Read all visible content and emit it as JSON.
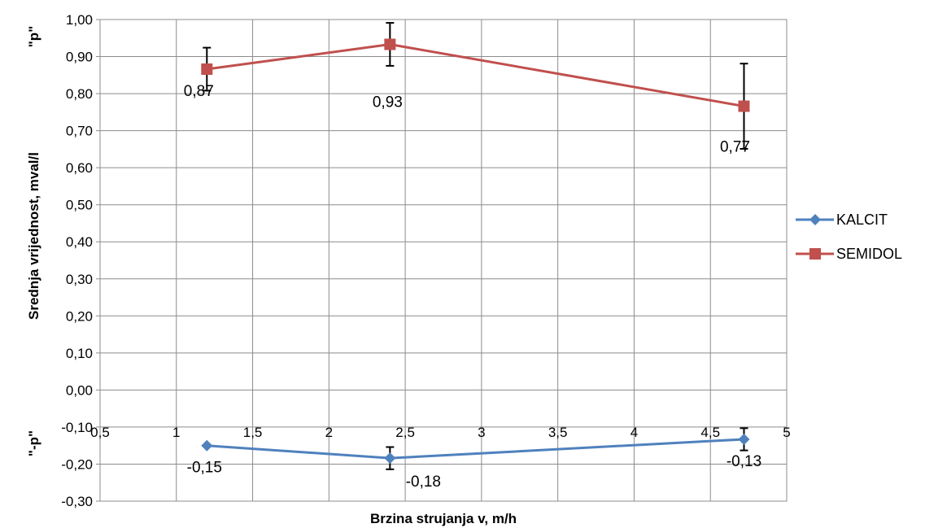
{
  "chart_data": {
    "type": "line",
    "xlabel": "Brzina strujanja v, m/h",
    "ylabel": "Srednja vrijednost, mval/l",
    "ylabel_top": "\"p\"",
    "ylabel_bottom": "\"-p\"",
    "xlim": [
      0.5,
      5
    ],
    "ylim": [
      -0.3,
      1.0
    ],
    "x_ticks": [
      "0,5",
      "1",
      "1,5",
      "2",
      "2,5",
      "3",
      "3,5",
      "4",
      "4,5",
      "5"
    ],
    "x_tick_values": [
      0.5,
      1,
      1.5,
      2,
      2.5,
      3,
      3.5,
      4,
      4.5,
      5
    ],
    "y_ticks": [
      "1,00",
      "0,90",
      "0,80",
      "0,70",
      "0,60",
      "0,50",
      "0,40",
      "0,30",
      "0,20",
      "0,10",
      "0,00",
      "-0,10",
      "-0,20",
      "-0,30"
    ],
    "y_tick_values": [
      1.0,
      0.9,
      0.8,
      0.7,
      0.6,
      0.5,
      0.4,
      0.3,
      0.2,
      0.1,
      0.0,
      -0.1,
      -0.2,
      -0.3
    ],
    "grid": true,
    "legend_position": "right",
    "series": [
      {
        "name": "KALCIT",
        "color": "#4f81bd",
        "marker": "diamond",
        "x": [
          1.2,
          2.4,
          4.72
        ],
        "y": [
          -0.15,
          -0.184,
          -0.133
        ],
        "errors": [
          0,
          0.03,
          0.03
        ],
        "labels": [
          "-0,15",
          "-0,18",
          "-0,13"
        ]
      },
      {
        "name": "SEMIDOL",
        "color": "#c0504d",
        "marker": "square",
        "x": [
          1.2,
          2.4,
          4.72
        ],
        "y": [
          0.866,
          0.933,
          0.766
        ],
        "errors": [
          0.058,
          0.058,
          0.115
        ],
        "labels": [
          "0,87",
          "0,93",
          "0,77"
        ]
      }
    ]
  }
}
